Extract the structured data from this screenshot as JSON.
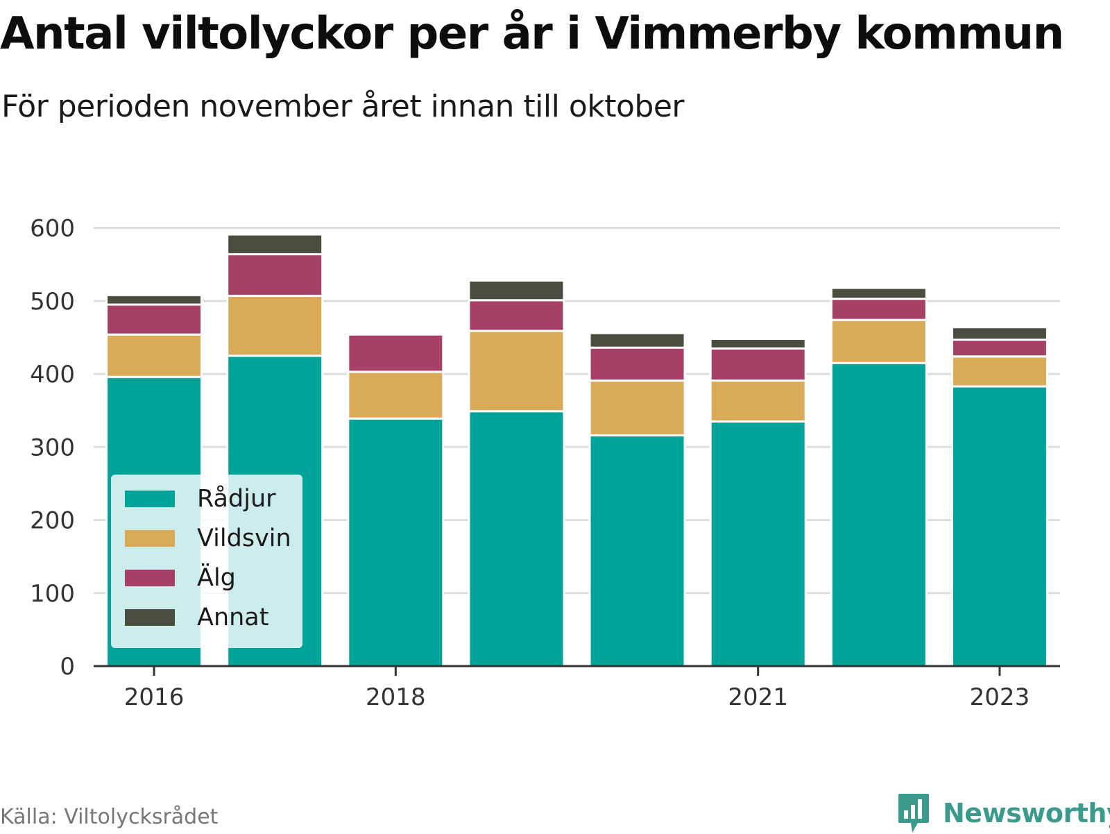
{
  "title": "Antal viltolyckor per år i Vimmerby kommun",
  "subtitle": "För perioden november året innan till oktober",
  "source": "Källa: Viltolycksrådet",
  "brand": {
    "name": "Newsworthy",
    "icon": "newsworthy-chart-bubble-icon",
    "color": "#3a9a8c"
  },
  "chart_data": {
    "type": "bar",
    "stacked": true,
    "x": [
      2016,
      2017,
      2018,
      2019,
      2020,
      2021,
      2022,
      2023
    ],
    "x_tick_labels": [
      "2016",
      "2018",
      "2021",
      "2023"
    ],
    "y_ticks": [
      0,
      100,
      200,
      300,
      400,
      500,
      600
    ],
    "ylim": [
      0,
      630
    ],
    "grid": true,
    "legend_position": "bottom-left",
    "series": [
      {
        "name": "Rådjur",
        "color": "#00a39a",
        "values": [
          396,
          425,
          339,
          349,
          316,
          335,
          415,
          383
        ]
      },
      {
        "name": "Vildsvin",
        "color": "#d9ab58",
        "values": [
          58,
          82,
          64,
          110,
          75,
          56,
          59,
          41
        ]
      },
      {
        "name": "Älg",
        "color": "#a64067",
        "values": [
          41,
          57,
          51,
          42,
          45,
          44,
          29,
          23
        ]
      },
      {
        "name": "Annat",
        "color": "#4a4c40",
        "values": [
          13,
          27,
          0,
          27,
          20,
          13,
          15,
          17
        ]
      }
    ]
  }
}
